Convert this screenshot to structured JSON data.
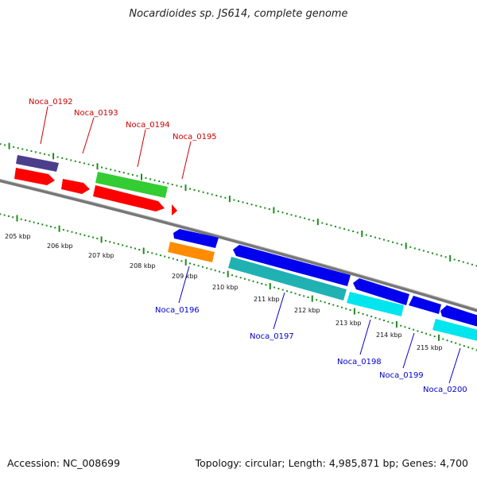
{
  "title": "Nocardioides sp. JS614, complete genome",
  "footer": {
    "accession": "Accession: NC_008699",
    "summary": "Topology: circular; Length: 4,985,871 bp; Genes: 4,700"
  },
  "colors": {
    "backbone": "#888888",
    "scale_ticks": "#1e8c1e",
    "forward_label": "#cc0000",
    "reverse_label": "#0000cc",
    "red_gene": "#ff0000",
    "green_gene": "#33cc33",
    "purple_gene": "#4b3f8c",
    "blue_gene": "#0000ee",
    "cyan_gene": "#00e5ee",
    "teal_gene": "#20b2b2",
    "orange_gene": "#ff8c00"
  },
  "scale_labels": [
    "205 kbp",
    "206 kbp",
    "207 kbp",
    "208 kbp",
    "209 kbp",
    "210 kbp",
    "211 kbp",
    "212 kbp",
    "213 kbp",
    "214 kbp",
    "215 kbp"
  ],
  "gene_labels_forward": [
    "Noca_0192",
    "Noca_0193",
    "Noca_0194",
    "Noca_0195"
  ],
  "gene_labels_reverse": [
    "Noca_0196",
    "Noca_0197",
    "Noca_0198",
    "Noca_0199",
    "Noca_0200"
  ]
}
